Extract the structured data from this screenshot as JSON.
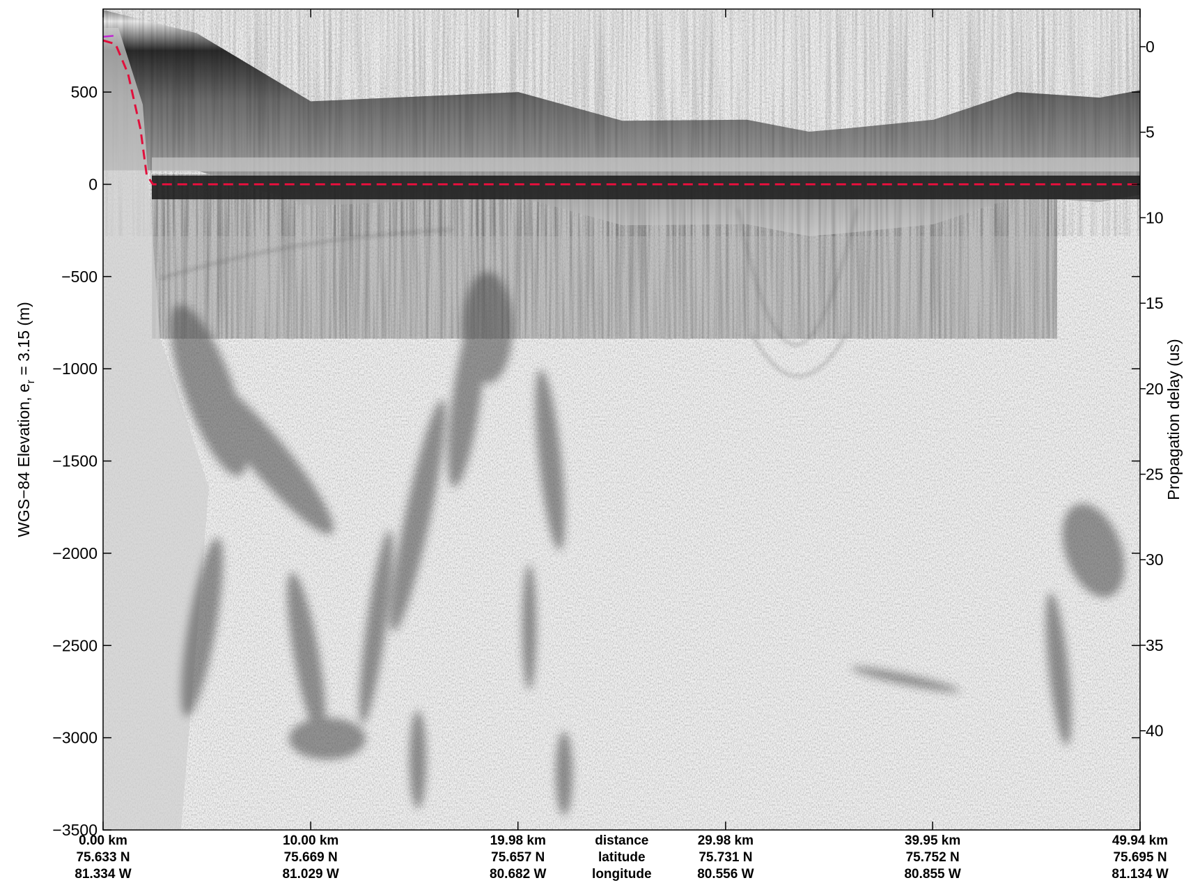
{
  "chart_data": {
    "type": "heatmap",
    "title": "",
    "ylabel_left": "WGS−84 Elevation, e",
    "ylabel_left_subscript": "r",
    "ylabel_left_suffix": " = 3.15 (m)",
    "ylabel_right": "Propagation delay (us)",
    "left_axis": {
      "ylim": [
        -3500,
        950
      ],
      "ticks": [
        500,
        0,
        -500,
        -1000,
        -1500,
        -2000,
        -2500,
        -3000,
        -3500
      ],
      "tick_labels": [
        "500",
        "0",
        "−500",
        "−1000",
        "−1500",
        "−2000",
        "−2500",
        "−3000",
        "−3500"
      ]
    },
    "right_axis": {
      "ylim": [
        -2.2,
        45.8
      ],
      "ticks": [
        0,
        5,
        10,
        15,
        20,
        25,
        30,
        35,
        40
      ],
      "tick_labels": [
        "0",
        "5",
        "10",
        "15",
        "20",
        "25",
        "30",
        "35",
        "40"
      ]
    },
    "x_axis": {
      "xlim": [
        0,
        49.94
      ],
      "ticks": [
        0.0,
        10.0,
        19.98,
        29.98,
        39.95,
        49.94
      ],
      "row_labels": [
        "distance",
        "latitude",
        "longitude"
      ],
      "label_rows": [
        [
          "0.00 km",
          "75.633 N",
          "81.334 W"
        ],
        [
          "10.00 km",
          "75.669 N",
          "81.029 W"
        ],
        [
          "19.98 km",
          "75.657 N",
          "80.682 W"
        ],
        [
          "29.98 km",
          "75.731 N",
          "80.556 W"
        ],
        [
          "39.95 km",
          "75.752 N",
          "80.855 W"
        ],
        [
          "49.94 km",
          "75.695 N",
          "81.134 W"
        ]
      ]
    },
    "surface_elevation_profile": {
      "x": [
        0,
        4.5,
        10,
        20,
        25,
        31,
        34,
        36,
        40,
        44,
        48,
        49.94
      ],
      "y": [
        945,
        820,
        450,
        500,
        345,
        350,
        285,
        305,
        350,
        500,
        470,
        510
      ]
    },
    "bed_trace_profile": {
      "x": [
        0,
        0.6,
        1.2,
        1.8,
        2.1,
        2.4,
        49.94
      ],
      "y": [
        780,
        760,
        600,
        300,
        50,
        0,
        0
      ]
    },
    "colormap": "gray",
    "trace_colors": {
      "bed_dashed": "#e0103c",
      "surface_start": "#c026d3"
    }
  }
}
